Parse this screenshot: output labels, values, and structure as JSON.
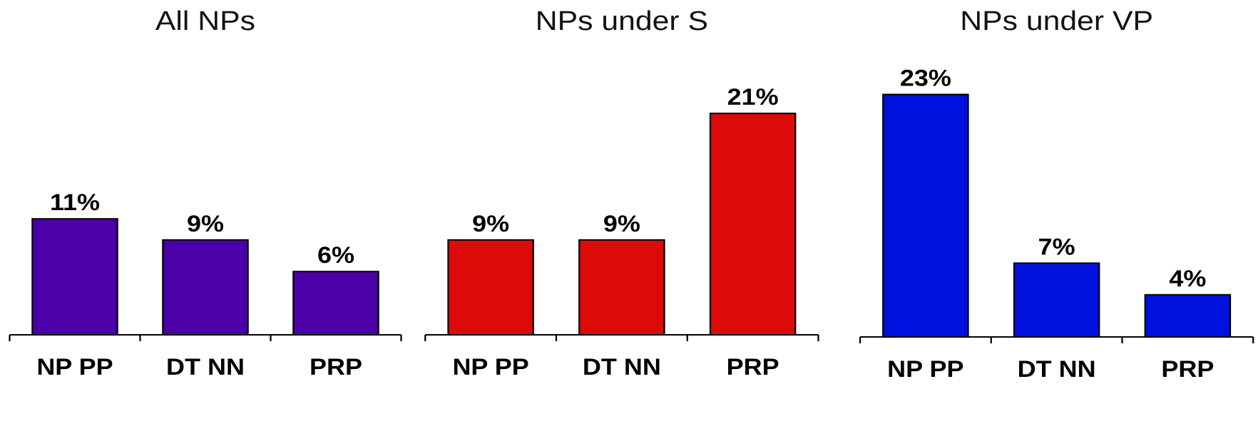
{
  "chart_data": [
    {
      "type": "bar",
      "title": "All NPs",
      "categories": [
        "NP PP",
        "DT NN",
        "PRP"
      ],
      "values": [
        11,
        9,
        6
      ],
      "value_labels": [
        "11%",
        "9%",
        "6%"
      ],
      "color": "#4b00a8"
    },
    {
      "type": "bar",
      "title": "NPs under S",
      "categories": [
        "NP PP",
        "DT NN",
        "PRP"
      ],
      "values": [
        9,
        9,
        21
      ],
      "value_labels": [
        "9%",
        "9%",
        "21%"
      ],
      "color": "#dd0a0a"
    },
    {
      "type": "bar",
      "title": "NPs under VP",
      "categories": [
        "NP PP",
        "DT NN",
        "PRP"
      ],
      "values": [
        23,
        7,
        4
      ],
      "value_labels": [
        "23%",
        "7%",
        "4%"
      ],
      "color": "#0010dd"
    }
  ]
}
